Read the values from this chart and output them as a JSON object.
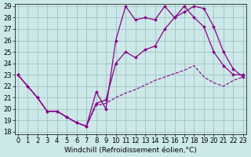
{
  "xlabel": "Windchill (Refroidissement éolien,°C)",
  "background_color": "#cce8e8",
  "grid_color": "#99bbbb",
  "line_color": "#880088",
  "xlim_min": 0,
  "xlim_max": 23,
  "ylim_min": 18,
  "ylim_max": 29,
  "xticks": [
    0,
    1,
    2,
    3,
    4,
    5,
    6,
    7,
    8,
    9,
    10,
    11,
    12,
    13,
    14,
    15,
    16,
    17,
    18,
    19,
    20,
    21,
    22,
    23
  ],
  "yticks": [
    18,
    19,
    20,
    21,
    22,
    23,
    24,
    25,
    26,
    27,
    28,
    29
  ],
  "line1_x": [
    0,
    1,
    2,
    3,
    4,
    5,
    6,
    7,
    8,
    9,
    10,
    11,
    12,
    13,
    14,
    15,
    16,
    17,
    18,
    19,
    20,
    21,
    22,
    23
  ],
  "line1_y": [
    23,
    22,
    21,
    19.8,
    19.8,
    19.3,
    18.8,
    18.5,
    21.5,
    20,
    26,
    29,
    27.8,
    28,
    27.8,
    29,
    28,
    29,
    28,
    27.2,
    25,
    23.8,
    23,
    23
  ],
  "line2_x": [
    0,
    1,
    2,
    3,
    4,
    5,
    6,
    7,
    8,
    9,
    10,
    11,
    12,
    13,
    14,
    15,
    16,
    17,
    18,
    19,
    20,
    21,
    22,
    23
  ],
  "line2_y": [
    23,
    22,
    21,
    19.8,
    19.8,
    19.3,
    18.8,
    18.5,
    20.5,
    20.8,
    24,
    25,
    24.5,
    25.2,
    25.5,
    27,
    28,
    28.5,
    29,
    28.8,
    27.2,
    25,
    23.5,
    22.8
  ],
  "line3_x": [
    0,
    1,
    2,
    3,
    4,
    5,
    6,
    7,
    8,
    9,
    10,
    11,
    12,
    13,
    14,
    15,
    16,
    17,
    18,
    19,
    20,
    21,
    22,
    23
  ],
  "line3_y": [
    23,
    22,
    21,
    19.8,
    19.8,
    19.3,
    18.8,
    18.5,
    20.3,
    20.5,
    21,
    21.4,
    21.7,
    22.1,
    22.5,
    22.8,
    23.1,
    23.4,
    23.8,
    22.8,
    22.3,
    22.0,
    22.5,
    22.8
  ],
  "tick_fontsize": 6,
  "label_fontsize": 6.5
}
